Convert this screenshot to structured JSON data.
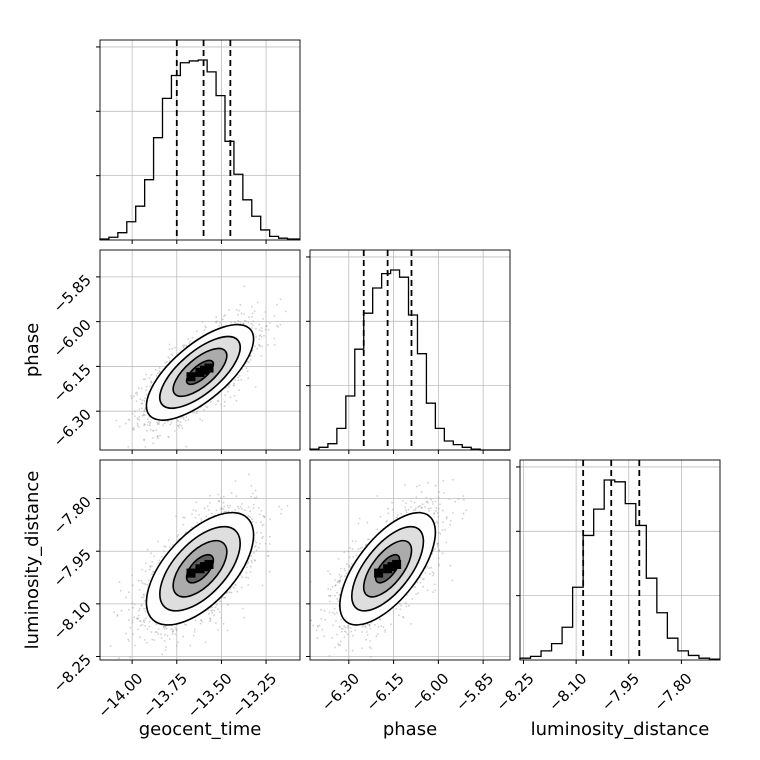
{
  "chart_data": {
    "type": "corner",
    "parameters": [
      "geocent_time",
      "phase",
      "luminosity_distance"
    ],
    "axes": {
      "geocent_time": {
        "range": [
          -14.18,
          -13.06
        ],
        "ticks": [
          -14.0,
          -13.75,
          -13.5,
          -13.25
        ],
        "tick_labels": [
          "−14.00",
          "−13.75",
          "−13.50",
          "−13.25"
        ]
      },
      "phase": {
        "range": [
          -6.43,
          -5.76
        ],
        "ticks": [
          -6.3,
          -6.15,
          -6.0,
          -5.85
        ],
        "tick_labels": [
          "−6.30",
          "−6.15",
          "−6.00",
          "−5.85"
        ]
      },
      "luminosity_distance": {
        "range": [
          -8.26,
          -7.69
        ],
        "ticks": [
          -8.25,
          -8.1,
          -7.95,
          -7.8
        ],
        "tick_labels": [
          "−8.25",
          "−8.10",
          "−7.95",
          "−7.80"
        ]
      }
    },
    "grid": true,
    "histograms": [
      {
        "parameter": "geocent_time",
        "bins": [
          -14.18,
          -14.13,
          -14.08,
          -14.03,
          -13.98,
          -13.93,
          -13.88,
          -13.83,
          -13.78,
          -13.73,
          -13.68,
          -13.63,
          -13.58,
          -13.53,
          -13.48,
          -13.43,
          -13.38,
          -13.33,
          -13.28,
          -13.23,
          -13.18,
          -13.13,
          -13.06
        ],
        "counts": [
          1,
          3,
          8,
          20,
          37,
          66,
          112,
          155,
          180,
          194,
          196,
          197,
          184,
          158,
          108,
          72,
          44,
          26,
          11,
          4,
          2,
          1
        ],
        "quantiles": [
          -13.75,
          -13.6,
          -13.45
        ]
      },
      {
        "parameter": "phase",
        "bins": [
          -6.43,
          -6.4,
          -6.37,
          -6.34,
          -6.31,
          -6.28,
          -6.25,
          -6.22,
          -6.19,
          -6.16,
          -6.13,
          -6.1,
          -6.07,
          -6.04,
          -6.01,
          -5.98,
          -5.95,
          -5.92,
          -5.89,
          -5.86,
          -5.83,
          -5.8,
          -5.76
        ],
        "counts": [
          1,
          3,
          7,
          24,
          60,
          112,
          152,
          180,
          196,
          200,
          192,
          150,
          107,
          52,
          24,
          10,
          6,
          3,
          1,
          0,
          0,
          0
        ],
        "quantiles": [
          -6.25,
          -6.17,
          -6.09
        ]
      },
      {
        "parameter": "luminosity_distance",
        "bins": [
          -8.26,
          -8.23,
          -8.2,
          -8.17,
          -8.14,
          -8.11,
          -8.08,
          -8.05,
          -8.02,
          -7.99,
          -7.96,
          -7.93,
          -7.9,
          -7.87,
          -7.84,
          -7.81,
          -7.78,
          -7.75,
          -7.72,
          -7.69
        ],
        "counts": [
          2,
          4,
          10,
          18,
          36,
          80,
          137,
          166,
          198,
          196,
          172,
          148,
          90,
          52,
          24,
          10,
          5,
          2,
          1
        ],
        "quantiles": [
          -8.08,
          -8.0,
          -7.92
        ]
      }
    ],
    "correlations": [
      {
        "x": "geocent_time",
        "y": "phase",
        "center": [
          -13.62,
          -6.17
        ],
        "sigma": [
          0.15,
          0.08
        ],
        "rho": 0.7
      },
      {
        "x": "geocent_time",
        "y": "luminosity_distance",
        "center": [
          -13.62,
          -8.0
        ],
        "sigma": [
          0.15,
          0.08
        ],
        "rho": 0.6
      },
      {
        "x": "phase",
        "y": "luminosity_distance",
        "center": [
          -6.17,
          -8.0
        ],
        "sigma": [
          0.08,
          0.08
        ],
        "rho": 0.65
      }
    ],
    "contour_levels_sigma": [
      0.5,
      1.0,
      1.5,
      2.0
    ]
  }
}
